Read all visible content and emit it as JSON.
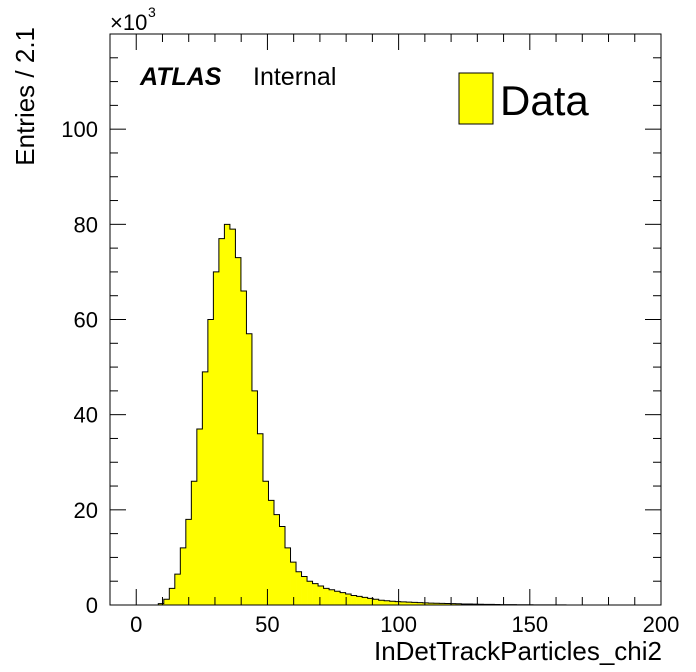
{
  "chart_data": {
    "type": "bar",
    "xlabel": "InDetTrackParticles_chi2",
    "ylabel": "Entries / 2.1",
    "y_multiplier_label": "×10",
    "y_multiplier_exponent": "3",
    "xlim": [
      -10,
      200
    ],
    "ylim": [
      0,
      120000
    ],
    "x_ticks": [
      0,
      50,
      100,
      150,
      200
    ],
    "y_ticks": [
      0,
      20,
      40,
      60,
      80,
      100
    ],
    "x_tick_labels": [
      "0",
      "50",
      "100",
      "150",
      "200"
    ],
    "y_tick_labels": [
      "0",
      "20",
      "40",
      "60",
      "80",
      "100"
    ],
    "bin_width": 2.1,
    "bin_start": 0,
    "grid": false,
    "legend_position": "top-right",
    "annotation": {
      "experiment": "ATLAS",
      "status": "Internal"
    },
    "series": [
      {
        "name": "Data",
        "color": "#ffff00",
        "edge_color": "#000000",
        "values": [
          0,
          0,
          0,
          0,
          300,
          1200,
          3500,
          6500,
          12000,
          18000,
          26000,
          37000,
          49000,
          60000,
          70000,
          77000,
          80000,
          79000,
          73000,
          66000,
          57000,
          45000,
          36000,
          26000,
          22000,
          19000,
          16500,
          12000,
          9000,
          7000,
          6000,
          5000,
          4500,
          4000,
          3500,
          3200,
          2900,
          2600,
          2300,
          2000,
          1800,
          1600,
          1400,
          1200,
          1000,
          900,
          800,
          700,
          650,
          600,
          550,
          500,
          450,
          400,
          370,
          340,
          310,
          280,
          250,
          220,
          200,
          180,
          160,
          140,
          120,
          100,
          90,
          80,
          70,
          60,
          50,
          40,
          35,
          30,
          25,
          20,
          18,
          15,
          12,
          10,
          8,
          6,
          5,
          4,
          3,
          2,
          2,
          1,
          1,
          1
        ]
      }
    ]
  }
}
